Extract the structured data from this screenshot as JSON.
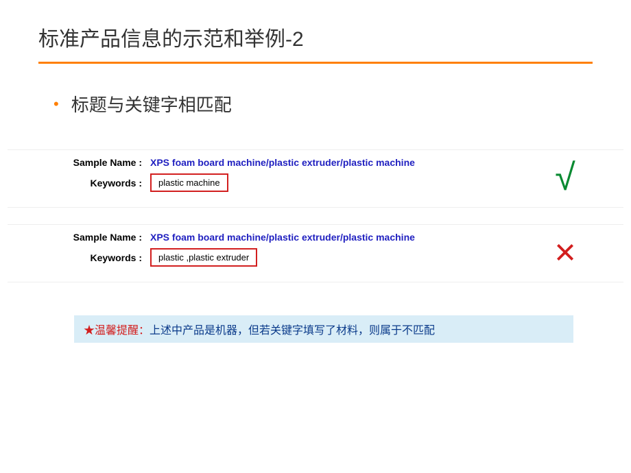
{
  "colors": {
    "accent_orange": "#ff7f00",
    "title_underline": "#ff7f00",
    "link_blue": "#2020c0",
    "error_red": "#d21e1e",
    "success_green": "#0a8a32",
    "reminder_bg": "#d9edf7",
    "reminder_text": "#0a3a8a"
  },
  "title": "标准产品信息的示范和举例-2",
  "bullet": "标题与关键字相匹配",
  "labels": {
    "sample_name": "Sample Name :",
    "keywords": "Keywords :"
  },
  "example_correct": {
    "sample_name": "XPS foam board machine/plastic extruder/plastic machine",
    "keywords": "plastic machine",
    "mark": "√"
  },
  "example_wrong": {
    "sample_name": "XPS foam board machine/plastic extruder/plastic machine",
    "keywords": "plastic ,plastic extruder",
    "mark": "×"
  },
  "reminder": {
    "star": "★",
    "label": "温馨提醒：",
    "text": "上述中产品是机器，但若关键字填写了材料，则属于不匹配"
  },
  "styling": {
    "title_fontsize": 30,
    "bullet_fontsize": 26,
    "field_label_fontsize": 14,
    "sample_value_fontsize": 14,
    "keyword_fontsize": 13,
    "mark_fontsize": 54,
    "reminder_fontsize": 16
  }
}
